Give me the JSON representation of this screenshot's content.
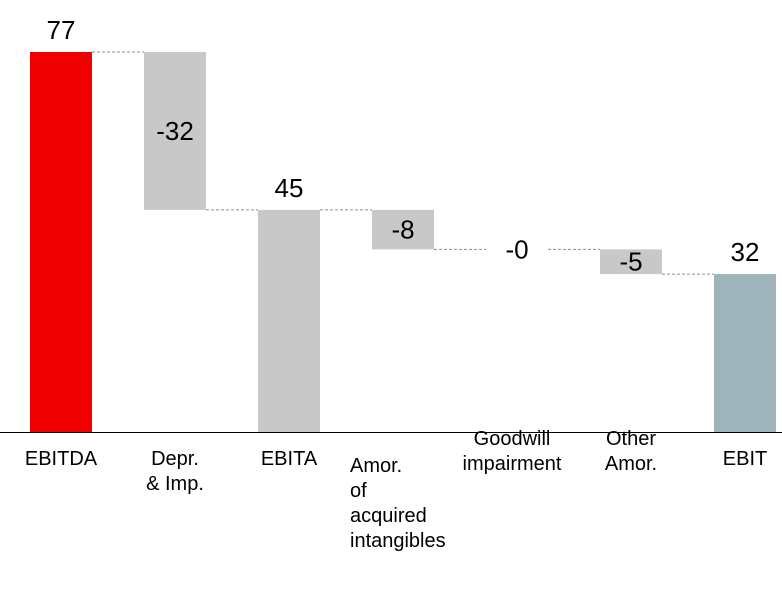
{
  "chart_data": {
    "type": "bar",
    "subtype": "waterfall",
    "categories": [
      "EBITDA",
      "Depr. & Imp.",
      "EBITA",
      "Amor. of acquired intangibles",
      "Goodwill impairment",
      "Other Amor.",
      "EBIT"
    ],
    "category_lines": [
      [
        "EBITDA"
      ],
      [
        "Depr.",
        "& Imp."
      ],
      [
        "EBITA"
      ],
      [
        "Amor.",
        "of",
        "acquired",
        "intangibles"
      ],
      [
        "Goodwill",
        "impairment"
      ],
      [
        "Other",
        "Amor."
      ],
      [
        "EBIT"
      ]
    ],
    "values": [
      77,
      -32,
      45,
      -8,
      0,
      -5,
      32
    ],
    "value_labels": [
      "77",
      "-32",
      "45",
      "-8",
      "-0",
      "-5",
      "32"
    ],
    "kinds": [
      "total",
      "delta",
      "total",
      "delta",
      "delta",
      "delta",
      "total"
    ],
    "colors": [
      "#ee0000",
      "#c8c8c8",
      "#c8c8c8",
      "#c8c8c8",
      "#c8c8c8",
      "#c8c8c8",
      "#9fb3ba"
    ],
    "connector_color": "#8c8c8c",
    "ylim": [
      0,
      77
    ],
    "grid": false,
    "legend": "none",
    "title": "",
    "xlabel": "",
    "ylabel": ""
  }
}
